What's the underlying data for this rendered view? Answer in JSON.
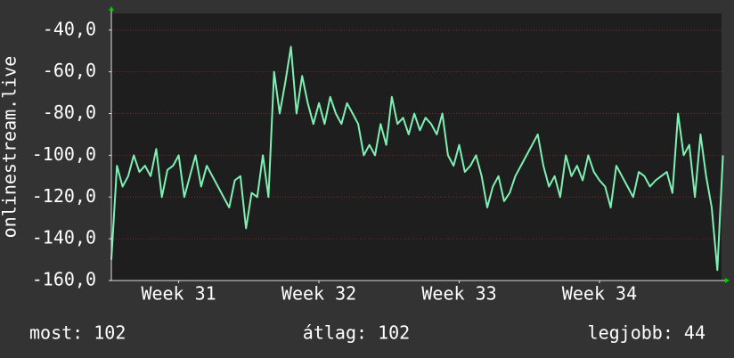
{
  "chart_data": {
    "type": "line",
    "y_label": "onlinestream.live",
    "x": [
      30.52,
      30.56,
      30.6,
      30.64,
      30.68,
      30.72,
      30.76,
      30.8,
      30.84,
      30.88,
      30.92,
      30.96,
      31.0,
      31.04,
      31.08,
      31.12,
      31.16,
      31.2,
      31.24,
      31.28,
      31.32,
      31.36,
      31.4,
      31.44,
      31.48,
      31.52,
      31.56,
      31.6,
      31.64,
      31.68,
      31.72,
      31.76,
      31.8,
      31.84,
      31.88,
      31.92,
      31.96,
      32.0,
      32.04,
      32.08,
      32.12,
      32.16,
      32.2,
      32.24,
      32.28,
      32.32,
      32.36,
      32.4,
      32.44,
      32.48,
      32.52,
      32.56,
      32.6,
      32.64,
      32.68,
      32.72,
      32.76,
      32.8,
      32.84,
      32.88,
      32.92,
      32.96,
      33.0,
      33.04,
      33.08,
      33.12,
      33.16,
      33.2,
      33.24,
      33.28,
      33.32,
      33.36,
      33.4,
      33.44,
      33.48,
      33.52,
      33.56,
      33.6,
      33.64,
      33.68,
      33.72,
      33.76,
      33.8,
      33.84,
      33.88,
      33.92,
      33.96,
      34.0,
      34.04,
      34.08,
      34.12,
      34.16,
      34.2,
      34.24,
      34.28,
      34.32,
      34.36,
      34.4,
      34.44,
      34.48,
      34.52,
      34.56,
      34.6,
      34.64,
      34.68,
      34.72,
      34.76,
      34.8,
      34.84,
      34.88
    ],
    "values": [
      -150,
      -105,
      -115,
      -110,
      -100,
      -108,
      -105,
      -110,
      -97,
      -120,
      -107,
      -105,
      -100,
      -120,
      -110,
      -100,
      -115,
      -105,
      -110,
      -115,
      -120,
      -125,
      -112,
      -110,
      -135,
      -118,
      -120,
      -100,
      -120,
      -60,
      -80,
      -65,
      -48,
      -80,
      -62,
      -75,
      -85,
      -75,
      -85,
      -72,
      -80,
      -85,
      -75,
      -80,
      -85,
      -100,
      -95,
      -100,
      -85,
      -95,
      -72,
      -85,
      -82,
      -90,
      -80,
      -88,
      -82,
      -85,
      -90,
      -80,
      -100,
      -105,
      -95,
      -108,
      -105,
      -100,
      -110,
      -125,
      -115,
      -110,
      -122,
      -118,
      -110,
      -105,
      -100,
      -95,
      -90,
      -105,
      -115,
      -110,
      -120,
      -100,
      -110,
      -105,
      -112,
      -100,
      -108,
      -112,
      -115,
      -125,
      -105,
      -110,
      -115,
      -120,
      -108,
      -110,
      -115,
      -112,
      -110,
      -108,
      -118,
      -80,
      -100,
      -95,
      -120,
      -90,
      -110,
      -125,
      -155,
      -100
    ],
    "color": "#7ff0b4",
    "xlim": [
      30.52,
      34.87
    ],
    "xticks": [
      {
        "value": 31,
        "label": "Week 31"
      },
      {
        "value": 32,
        "label": "Week 32"
      },
      {
        "value": 33,
        "label": "Week 33"
      },
      {
        "value": 34,
        "label": "Week 34"
      }
    ],
    "ylim": [
      -160,
      -32
    ],
    "yticks": [
      {
        "value": -160,
        "label": "-160,0"
      },
      {
        "value": -140,
        "label": "-140,0"
      },
      {
        "value": -120,
        "label": "-120,0"
      },
      {
        "value": -100,
        "label": "-100,0"
      },
      {
        "value": -80,
        "label": "-80,0"
      },
      {
        "value": -60,
        "label": "-60,0"
      },
      {
        "value": -40,
        "label": "-40,0"
      }
    ],
    "grid": true,
    "footer": [
      "most: 102",
      "átlag: 102",
      "legjobb: 44"
    ]
  }
}
